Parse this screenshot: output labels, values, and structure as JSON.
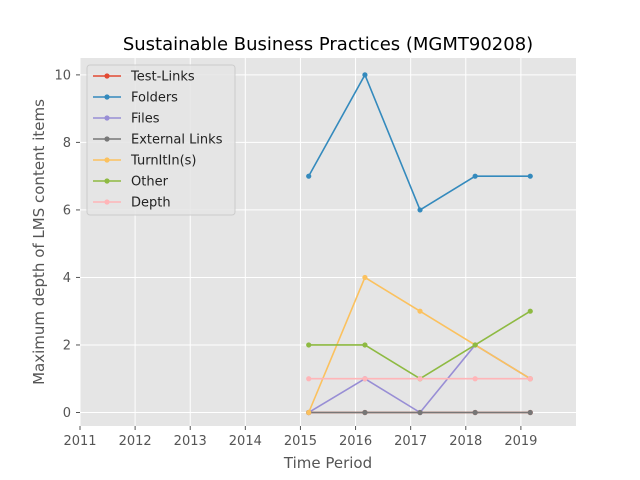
{
  "chart_data": {
    "type": "line",
    "title": "Sustainable Business Practices (MGMT90208)",
    "xlabel": "Time Period",
    "ylabel": "Maximum depth of LMS content items",
    "xlim": [
      2011,
      2020
    ],
    "ylim": [
      -0.4,
      10.5
    ],
    "xticks": [
      2011,
      2012,
      2013,
      2014,
      2015,
      2016,
      2017,
      2018,
      2019
    ],
    "yticks": [
      0,
      2,
      4,
      6,
      8,
      10
    ],
    "grid": true,
    "legend_position": "top-left",
    "x": [
      2015.15,
      2016.17,
      2017.17,
      2018.17,
      2019.17
    ],
    "series": [
      {
        "name": "Test-Links",
        "color": "#e24a33",
        "values": [
          0,
          0,
          0,
          0,
          0
        ]
      },
      {
        "name": "Folders",
        "color": "#348abd",
        "values": [
          7,
          10,
          6,
          7,
          7
        ]
      },
      {
        "name": "Files",
        "color": "#988ed5",
        "values": [
          0,
          1,
          0,
          2,
          1
        ]
      },
      {
        "name": "External Links",
        "color": "#777777",
        "values": [
          0,
          0,
          0,
          0,
          0
        ]
      },
      {
        "name": "TurnItIn(s)",
        "color": "#fbc15e",
        "values": [
          0,
          4,
          3,
          2,
          1
        ]
      },
      {
        "name": "Other",
        "color": "#8eba42",
        "values": [
          2,
          2,
          1,
          2,
          3
        ]
      },
      {
        "name": "Depth",
        "color": "#ffb5b8",
        "values": [
          1,
          1,
          1,
          1,
          1
        ]
      }
    ]
  }
}
